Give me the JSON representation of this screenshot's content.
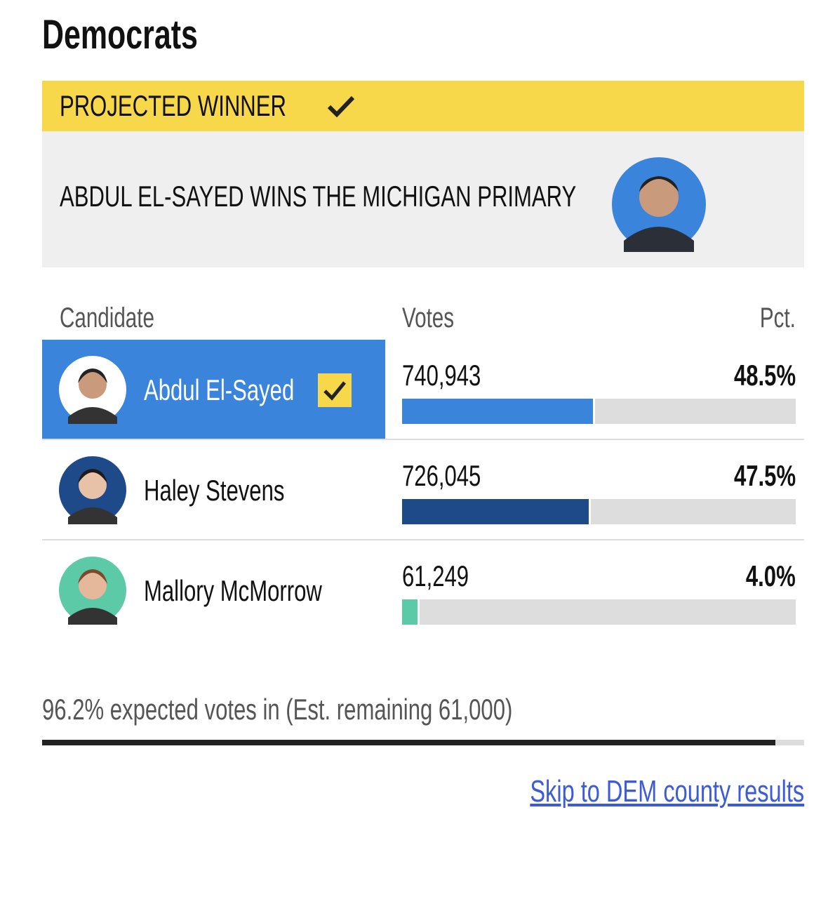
{
  "heading": "Democrats",
  "banner": {
    "label": "PROJECTED WINNER",
    "headline": "ABDUL EL-SAYED WINS THE MICHIGAN PRIMARY"
  },
  "table": {
    "headers": [
      "Candidate",
      "Votes",
      "Pct."
    ],
    "candidates": [
      {
        "name": "Abdul El-Sayed",
        "votes": "740,943",
        "pct": {
          "value": 48.5,
          "label": "48.5%"
        },
        "color": "#3a84dc",
        "winner": true
      },
      {
        "name": "Haley Stevens",
        "votes": "726,045",
        "pct": {
          "value": 47.5,
          "label": "47.5%"
        },
        "color": "#1f4a8a",
        "winner": false
      },
      {
        "name": "Mallory McMorrow",
        "votes": "61,249",
        "pct": {
          "value": 4.0,
          "label": "4.0%"
        },
        "color": "#5cc9a7",
        "winner": false
      }
    ]
  },
  "expected": {
    "value": 96.2,
    "text": "96.2% expected votes in (Est. remaining 61,000)"
  },
  "link": "Skip to DEM county results"
}
